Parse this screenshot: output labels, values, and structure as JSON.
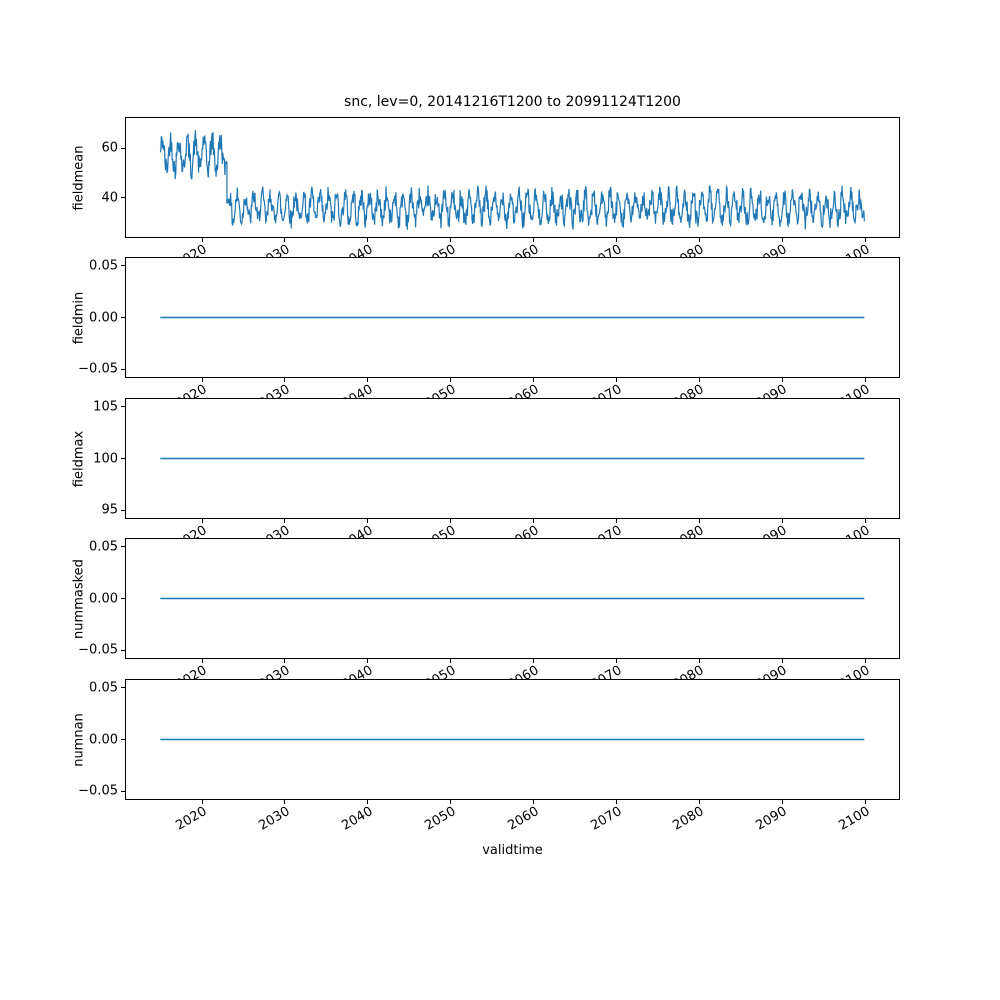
{
  "figure": {
    "background": "#ffffff"
  },
  "chart_data": {
    "type": "line",
    "title": "snc, lev=0, 20141216T1200 to 20991124T1200",
    "xlabel": "validtime",
    "x_range": [
      2010.7,
      2104.2
    ],
    "xticks": [
      2020,
      2030,
      2040,
      2050,
      2060,
      2070,
      2080,
      2090,
      2100
    ],
    "xtick_labels": [
      "2020",
      "2030",
      "2040",
      "2050",
      "2060",
      "2070",
      "2080",
      "2090",
      "2100"
    ],
    "line_color": "#1f77b4",
    "legend": "none",
    "grid": false,
    "subplots": [
      {
        "ylabel": "fieldmean",
        "ylim": [
          23.7,
          72.7
        ],
        "yticks": [
          40,
          60
        ],
        "ytick_labels": [
          "40",
          "60"
        ],
        "series": [
          {
            "name": "fieldmean",
            "type": "noisy",
            "color": "#1f77b4",
            "segments": [
              {
                "x_start": 2014.96,
                "x_end": 2023.0,
                "mean": 57.5,
                "amplitude": 10.5
              },
              {
                "x_start": 2023.0,
                "x_end": 2099.9,
                "mean": 36.0,
                "amplitude": 9.0
              }
            ]
          }
        ]
      },
      {
        "ylabel": "fieldmin",
        "ylim": [
          -0.0583,
          0.0583
        ],
        "yticks": [
          -0.05,
          0.0,
          0.05
        ],
        "ytick_labels": [
          "−0.05",
          "0.00",
          "0.05"
        ],
        "series": [
          {
            "name": "fieldmin",
            "type": "flat",
            "color": "#1f77b4",
            "value": 0.0,
            "x_start": 2014.96,
            "x_end": 2099.9
          }
        ]
      },
      {
        "ylabel": "fieldmax",
        "ylim": [
          94.17,
          105.83
        ],
        "yticks": [
          95,
          100,
          105
        ],
        "ytick_labels": [
          "95",
          "100",
          "105"
        ],
        "series": [
          {
            "name": "fieldmax",
            "type": "flat",
            "color": "#1f77b4",
            "value": 100.0,
            "x_start": 2014.96,
            "x_end": 2099.9
          }
        ]
      },
      {
        "ylabel": "nummasked",
        "ylim": [
          -0.0583,
          0.0583
        ],
        "yticks": [
          -0.05,
          0.0,
          0.05
        ],
        "ytick_labels": [
          "−0.05",
          "0.00",
          "0.05"
        ],
        "series": [
          {
            "name": "nummasked",
            "type": "flat",
            "color": "#1f77b4",
            "value": 0.0,
            "x_start": 2014.96,
            "x_end": 2099.9
          }
        ]
      },
      {
        "ylabel": "numnan",
        "ylim": [
          -0.0583,
          0.0583
        ],
        "yticks": [
          -0.05,
          0.0,
          0.05
        ],
        "ytick_labels": [
          "−0.05",
          "0.00",
          "0.05"
        ],
        "series": [
          {
            "name": "numnan",
            "type": "flat",
            "color": "#1f77b4",
            "value": 0.0,
            "x_start": 2014.96,
            "x_end": 2099.9
          }
        ]
      }
    ]
  }
}
